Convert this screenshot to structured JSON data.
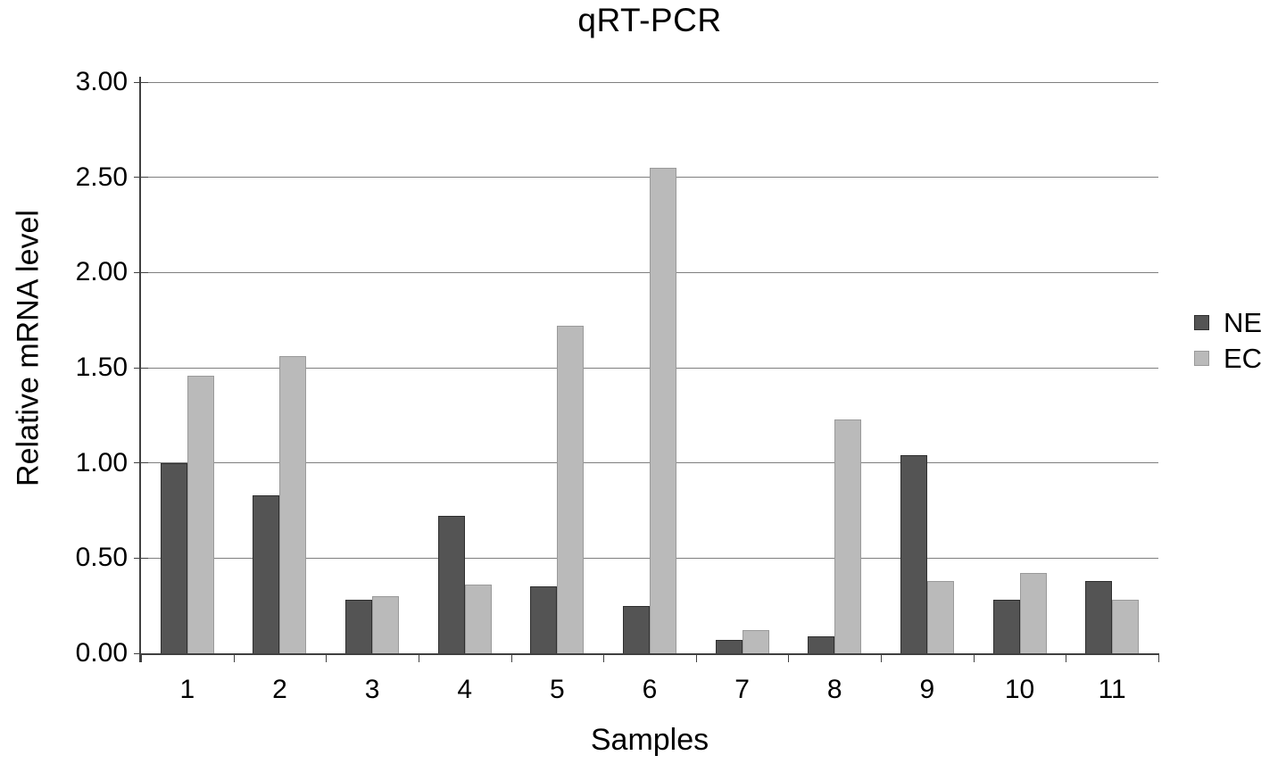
{
  "chart_data": {
    "type": "bar",
    "title": "qRT-PCR",
    "xlabel": "Samples",
    "ylabel": "Relative mRNA level",
    "categories": [
      "1",
      "2",
      "3",
      "4",
      "5",
      "6",
      "7",
      "8",
      "9",
      "10",
      "11"
    ],
    "series": [
      {
        "name": "NE",
        "color": "#545454",
        "border_color": "#2f2f2f",
        "values": [
          1.0,
          0.83,
          0.28,
          0.72,
          0.35,
          0.25,
          0.07,
          0.09,
          1.04,
          0.28,
          0.38
        ]
      },
      {
        "name": "EC",
        "color": "#bababa",
        "border_color": "#9a9a9a",
        "values": [
          1.46,
          1.56,
          0.3,
          0.36,
          1.72,
          2.55,
          0.12,
          1.23,
          0.38,
          0.42,
          0.28
        ]
      }
    ],
    "ylim": [
      0,
      3.0
    ],
    "ytick_step": 0.5,
    "ytick_labels": [
      "0.00",
      "0.50",
      "1.00",
      "1.50",
      "2.00",
      "2.50",
      "3.00"
    ],
    "grid": true,
    "legend_position": "right"
  },
  "colors": {
    "background": "#ffffff",
    "gridline": "#7f7f7f",
    "axis": "#404040",
    "text": "#000000"
  }
}
